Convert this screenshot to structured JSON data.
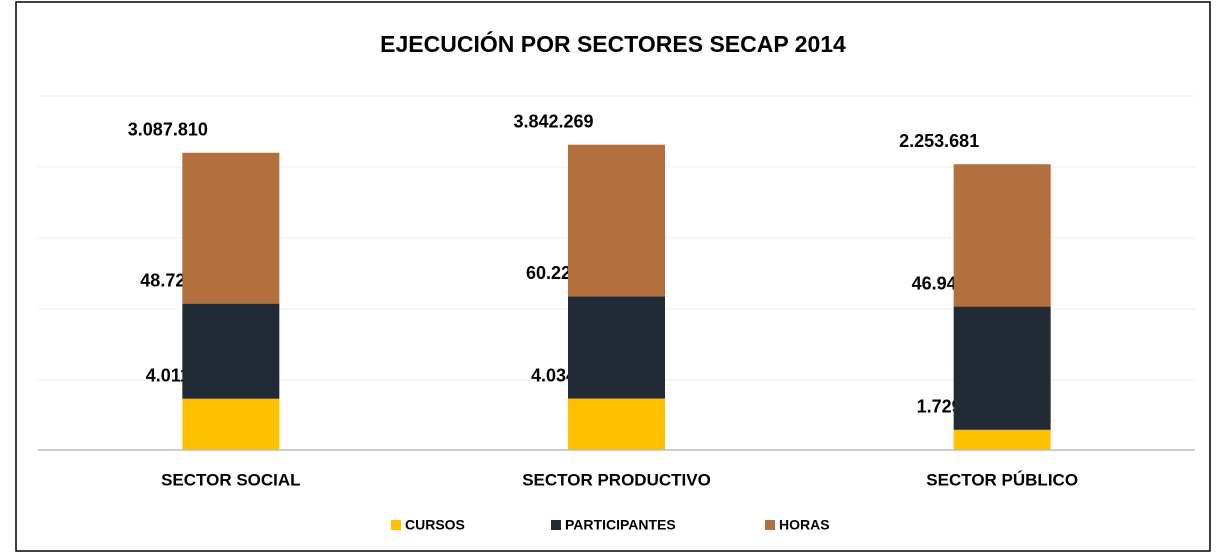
{
  "chart_data": {
    "type": "bar",
    "stacked": true,
    "log": true,
    "title": "EJECUCIÓN POR SECTORES SECAP 2014",
    "categories": [
      "SECTOR SOCIAL",
      "SECTOR PRODUCTIVO",
      "SECTOR PÚBLICO"
    ],
    "series": [
      {
        "name": "CURSOS",
        "color": "#ffc000",
        "values": [
          4011,
          4034,
          1729
        ],
        "value_labels": [
          "4.011",
          "4.034",
          "1.729"
        ]
      },
      {
        "name": "PARTICIPANTES",
        "color": "#222a35",
        "values": [
          48721,
          60227,
          46947
        ],
        "value_labels": [
          "48.721",
          "60.227",
          "46.947"
        ]
      },
      {
        "name": "HORAS",
        "color": "#b36f3e",
        "values": [
          3087810,
          3842269,
          2253681
        ],
        "value_labels": [
          "3.087.810",
          "3.842.269",
          "2.253.681"
        ]
      }
    ],
    "ylim": [
      1000,
      10000000
    ],
    "legend": "bottom"
  }
}
